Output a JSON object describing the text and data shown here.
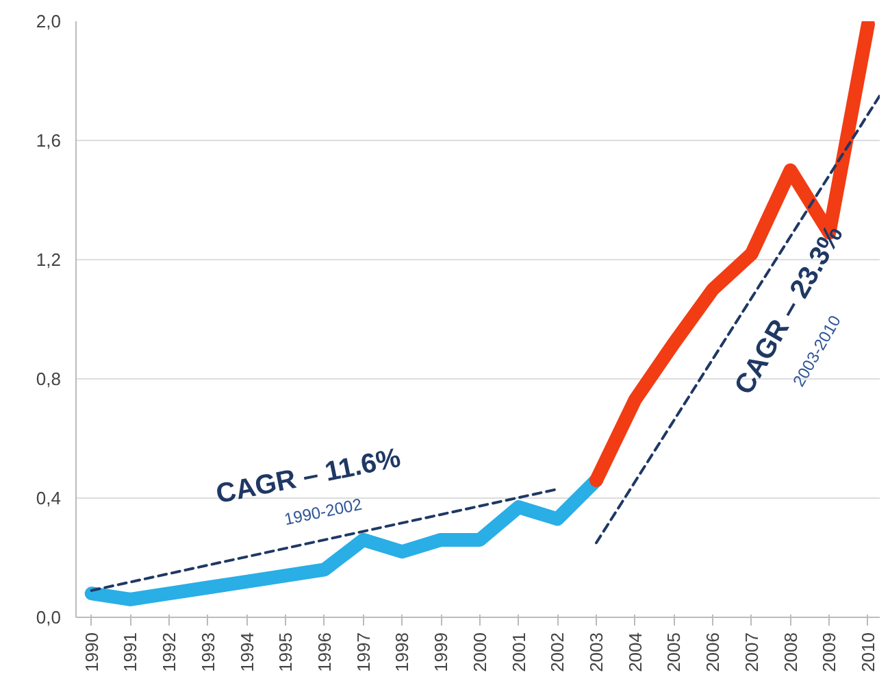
{
  "chart_data": {
    "type": "line",
    "series": [
      {
        "color": "#29aee6",
        "x": [
          1990,
          1991,
          1992,
          1993,
          1994,
          1995,
          1996,
          1997,
          1998,
          1999,
          2000,
          2001,
          2002,
          2003
        ],
        "values": [
          0.08,
          0.06,
          0.08,
          0.1,
          0.12,
          0.14,
          0.16,
          0.26,
          0.22,
          0.26,
          0.26,
          0.37,
          0.33,
          0.46
        ]
      },
      {
        "color": "#f23c14",
        "x": [
          2003,
          2004,
          2005,
          2006,
          2007,
          2008,
          2009,
          2010
        ],
        "values": [
          0.46,
          0.73,
          0.92,
          1.1,
          1.22,
          1.5,
          1.29,
          1.99
        ]
      },
      {
        "type": "line",
        "color": "#1f3864",
        "line_style": "dashed",
        "x": [
          1990,
          2002
        ],
        "values": [
          0.09,
          0.43
        ]
      },
      {
        "type": "line",
        "color": "#1f3864",
        "line_style": "dashed",
        "x": [
          2003,
          2010.3
        ],
        "values": [
          0.25,
          1.75
        ]
      }
    ],
    "xlim": [
      1989.6,
      2010.3
    ],
    "xticks": [
      1990,
      1991,
      1992,
      1993,
      1994,
      1995,
      1996,
      1997,
      1998,
      1999,
      2000,
      2001,
      2002,
      2003,
      2004,
      2005,
      2006,
      2007,
      2008,
      2009,
      2010
    ],
    "ylim": [
      0,
      2
    ],
    "yticks": [
      {
        "value": 0,
        "label": "0,0"
      },
      {
        "value": 0.4,
        "label": "0,4"
      },
      {
        "value": 0.8,
        "label": "0,8"
      },
      {
        "value": 1.2,
        "label": "1,2"
      },
      {
        "value": 1.6,
        "label": "1,6"
      },
      {
        "value": 2,
        "label": "2,0"
      }
    ],
    "grid": "y",
    "marker": "none",
    "annotations": [
      "CAGR – 11.6%",
      "1990-2002",
      "CAGR – 23.3%",
      "2003-2010"
    ]
  }
}
